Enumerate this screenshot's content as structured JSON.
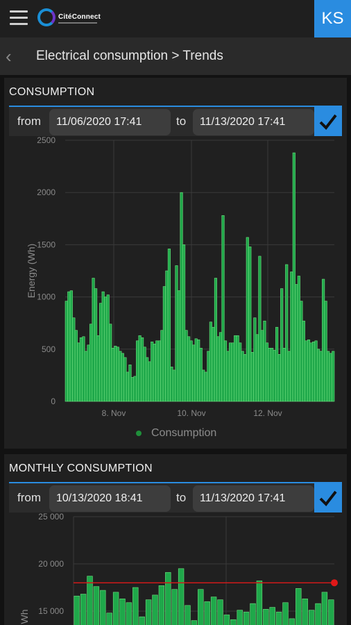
{
  "header": {
    "brand": "CitéConnect",
    "user_initials": "KS",
    "breadcrumb": "Electrical consumption > Trends"
  },
  "consumption": {
    "title": "CONSUMPTION",
    "from_label": "from",
    "from_value": "11/06/2020 17:41",
    "to_label": "to",
    "to_value": "11/13/2020 17:41",
    "legend": "Consumption"
  },
  "monthly": {
    "title": "MONTHLY CONSUMPTION",
    "from_label": "from",
    "from_value": "10/13/2020 18:41",
    "to_label": "to",
    "to_value": "11/13/2020 17:41"
  },
  "colors": {
    "accent": "#2a8ce0",
    "bar": "#1fa84a",
    "bar_stroke": "#6fe07f",
    "threshold": "#d11a1a"
  },
  "chart_data": [
    {
      "type": "bar",
      "ylabel": "Energy (Wh)",
      "ylim": [
        0,
        2500
      ],
      "yticks": [
        "2500",
        "2000",
        "1500",
        "1000",
        "500",
        "0"
      ],
      "xticks": [
        "8. Nov",
        "10. Nov",
        "12. Nov"
      ],
      "grid": true,
      "legend_position": "bottom",
      "series": [
        {
          "name": "Consumption",
          "values": [
            960,
            1050,
            1060,
            800,
            680,
            560,
            610,
            620,
            480,
            540,
            740,
            1180,
            1080,
            630,
            940,
            1050,
            1000,
            1020,
            740,
            510,
            530,
            520,
            480,
            460,
            420,
            280,
            350,
            230,
            240,
            580,
            630,
            610,
            520,
            420,
            380,
            570,
            550,
            580,
            580,
            680,
            1100,
            1250,
            1460,
            330,
            300,
            1300,
            1060,
            2000,
            1500,
            680,
            620,
            580,
            540,
            600,
            590,
            510,
            300,
            280,
            480,
            760,
            710,
            1180,
            620,
            660,
            1780,
            580,
            480,
            560,
            560,
            630,
            630,
            560,
            480,
            450,
            1570,
            1480,
            470,
            800,
            640,
            1390,
            680,
            770,
            560,
            510,
            510,
            490,
            710,
            450,
            1080,
            510,
            1310,
            480,
            1240,
            2380,
            1120,
            1200,
            960,
            770,
            580,
            590,
            560,
            570,
            580,
            500,
            480,
            1170,
            960,
            480,
            460,
            480
          ]
        }
      ]
    },
    {
      "type": "bar",
      "ylabel": "Wh",
      "ylim": [
        0,
        25000
      ],
      "yticks": [
        "25 000",
        "20 000",
        "15 000"
      ],
      "grid": true,
      "threshold": 18000,
      "series": [
        {
          "name": "",
          "values": [
            16600,
            16800,
            18700,
            17600,
            17200,
            14800,
            17000,
            16300,
            15900,
            17500,
            14400,
            16200,
            16700,
            17700,
            19100,
            17300,
            19500,
            15600,
            14000,
            17300,
            16000,
            16500,
            16200,
            14600,
            14100,
            15100,
            14900,
            15800,
            18200,
            15200,
            15400,
            14900,
            15900,
            14200,
            17400,
            16300,
            15100,
            15800,
            17000,
            16200
          ]
        }
      ]
    }
  ]
}
